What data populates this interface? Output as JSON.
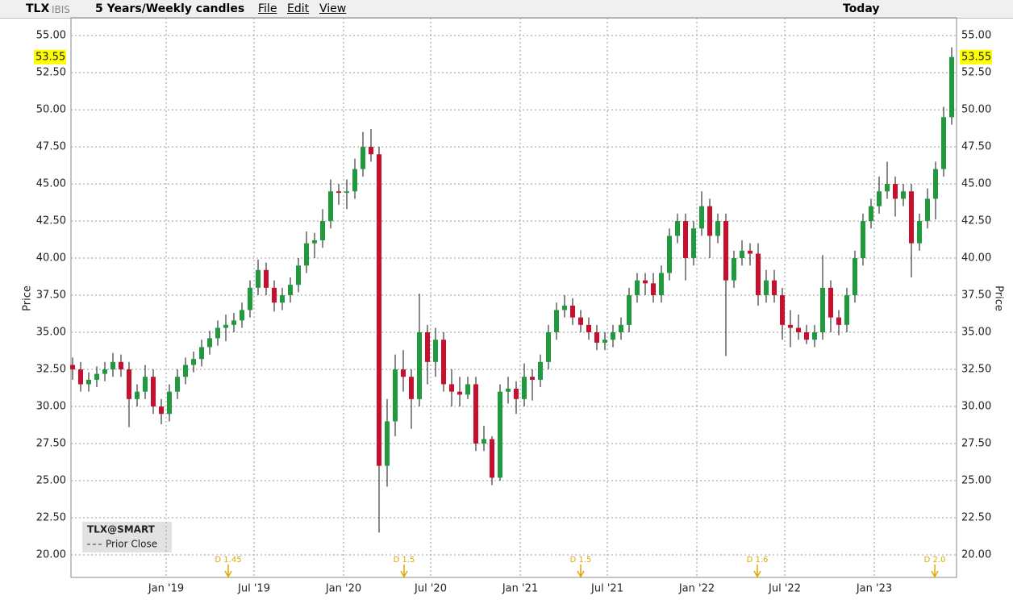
{
  "toolbar": {
    "symbol": "TLX",
    "exchange": "IBIS",
    "period": "5 Years/Weekly candles",
    "menus": [
      "File",
      "Edit",
      "View"
    ],
    "range": "Today"
  },
  "chart_data": {
    "type": "candlestick",
    "y_label": "Price",
    "legend_title": "TLX@SMART",
    "legend_item": "Prior Close",
    "up_color": "#1f9a3c",
    "down_color": "#c8102e",
    "grid": true,
    "xlim": [
      -0.2,
      109.6
    ],
    "xticks": [
      {
        "value": 11.6,
        "label": "Jan '19"
      },
      {
        "value": 22.5,
        "label": "Jul '19"
      },
      {
        "value": 33.6,
        "label": "Jan '20"
      },
      {
        "value": 44.4,
        "label": "Jul '20"
      },
      {
        "value": 55.5,
        "label": "Jan '21"
      },
      {
        "value": 66.3,
        "label": "Jul '21"
      },
      {
        "value": 77.4,
        "label": "Jan '22"
      },
      {
        "value": 88.3,
        "label": "Jul '22"
      },
      {
        "value": 99.4,
        "label": "Jan '23"
      }
    ],
    "ylim": [
      18.48,
      56.2
    ],
    "yticks": [
      {
        "value": 20,
        "label": "20.00"
      },
      {
        "value": 22.5,
        "label": "22.50"
      },
      {
        "value": 25,
        "label": "25.00"
      },
      {
        "value": 27.5,
        "label": "27.50"
      },
      {
        "value": 30,
        "label": "30.00"
      },
      {
        "value": 32.5,
        "label": "32.50"
      },
      {
        "value": 35,
        "label": "35.00"
      },
      {
        "value": 37.5,
        "label": "37.50"
      },
      {
        "value": 40,
        "label": "40.00"
      },
      {
        "value": 42.5,
        "label": "42.50"
      },
      {
        "value": 45,
        "label": "45.00"
      },
      {
        "value": 47.5,
        "label": "47.50"
      },
      {
        "value": 50,
        "label": "50.00"
      },
      {
        "value": 52.5,
        "label": "52.50"
      },
      {
        "value": 55,
        "label": "55.00"
      }
    ],
    "annotations": [
      {
        "x": 19.3,
        "label": "D 1.45"
      },
      {
        "x": 41.1,
        "label": "D 1.5"
      },
      {
        "x": 63,
        "label": "D 1.5"
      },
      {
        "x": 84.9,
        "label": "D 1.6"
      },
      {
        "x": 106.9,
        "label": "D 2.0"
      }
    ],
    "candles": [
      [
        32.8,
        33.3,
        31.8,
        32.5
      ],
      [
        32.5,
        33.0,
        31.0,
        31.5
      ],
      [
        31.5,
        32.3,
        31.0,
        31.8
      ],
      [
        31.8,
        32.7,
        31.3,
        32.2
      ],
      [
        32.2,
        33.0,
        31.7,
        32.5
      ],
      [
        32.5,
        33.6,
        32.0,
        33
      ],
      [
        33,
        33.5,
        32.0,
        32.5
      ],
      [
        32.5,
        33.0,
        28.6,
        30.5
      ],
      [
        30.5,
        31.5,
        30.0,
        31
      ],
      [
        31,
        32.8,
        30.5,
        32
      ],
      [
        32,
        32.5,
        29.5,
        30
      ],
      [
        30,
        30.5,
        28.8,
        29.5
      ],
      [
        29.5,
        31.5,
        29.0,
        31
      ],
      [
        31,
        32.5,
        30.5,
        32
      ],
      [
        32,
        33.3,
        31.5,
        32.8
      ],
      [
        32.8,
        33.7,
        32.3,
        33.2
      ],
      [
        33.2,
        34.5,
        32.7,
        34
      ],
      [
        34,
        35.1,
        33.5,
        34.6
      ],
      [
        34.6,
        35.8,
        34.1,
        35.3
      ],
      [
        35.3,
        36.2,
        34.4,
        35.5
      ],
      [
        35.5,
        36.3,
        35.0,
        35.8
      ],
      [
        35.8,
        37.0,
        35.3,
        36.5
      ],
      [
        36.5,
        38.5,
        36.0,
        38
      ],
      [
        38,
        39.9,
        37.5,
        39.2
      ],
      [
        39.2,
        39.7,
        37.5,
        38
      ],
      [
        38,
        38.5,
        36.4,
        37
      ],
      [
        37,
        38.0,
        36.5,
        37.5
      ],
      [
        37.5,
        38.7,
        37.0,
        38.2
      ],
      [
        38.2,
        40.0,
        37.7,
        39.5
      ],
      [
        39.5,
        41.8,
        39.0,
        41
      ],
      [
        41,
        41.7,
        40.0,
        41.2
      ],
      [
        41.2,
        43.3,
        40.7,
        42.5
      ],
      [
        42.5,
        45.3,
        42.0,
        44.5
      ],
      [
        44.5,
        45.0,
        43.6,
        44.4
      ],
      [
        44.4,
        45.3,
        43.3,
        44.5
      ],
      [
        44.5,
        46.7,
        44.0,
        46
      ],
      [
        46,
        48.5,
        45.5,
        47.5
      ],
      [
        47.5,
        48.7,
        46.5,
        47
      ],
      [
        47,
        47.5,
        21.5,
        26
      ],
      [
        26,
        30.5,
        24.6,
        29
      ],
      [
        29,
        33.5,
        28.0,
        32.5
      ],
      [
        32.5,
        33.8,
        31.0,
        32
      ],
      [
        32,
        32.5,
        28.5,
        30.5
      ],
      [
        30.5,
        37.6,
        30.0,
        35
      ],
      [
        35,
        35.5,
        31.5,
        33
      ],
      [
        33,
        35.3,
        32.0,
        34.5
      ],
      [
        34.5,
        35.0,
        31.0,
        31.5
      ],
      [
        31.5,
        32.5,
        30.0,
        31
      ],
      [
        31,
        32.0,
        30.0,
        30.8
      ],
      [
        30.8,
        32.0,
        30.5,
        31.5
      ],
      [
        31.5,
        32.0,
        27.0,
        27.5
      ],
      [
        27.5,
        28.7,
        27.0,
        27.8
      ],
      [
        27.8,
        28.0,
        24.7,
        25.2
      ],
      [
        25.2,
        31.5,
        25.0,
        31
      ],
      [
        31,
        32.0,
        30.2,
        31.2
      ],
      [
        31.2,
        31.7,
        29.5,
        30.5
      ],
      [
        30.5,
        32.9,
        30.0,
        32
      ],
      [
        32,
        32.5,
        30.4,
        31.8
      ],
      [
        31.8,
        33.5,
        31.3,
        33
      ],
      [
        33,
        35.5,
        32.5,
        35
      ],
      [
        35,
        37.0,
        34.5,
        36.5
      ],
      [
        36.5,
        37.5,
        36.0,
        36.8
      ],
      [
        36.8,
        37.3,
        35.5,
        36
      ],
      [
        36,
        36.5,
        35.0,
        35.5
      ],
      [
        35.5,
        36.0,
        34.5,
        35
      ],
      [
        35,
        35.5,
        33.8,
        34.3
      ],
      [
        34.3,
        35.0,
        33.8,
        34.5
      ],
      [
        34.5,
        35.5,
        34.0,
        35
      ],
      [
        35,
        36.0,
        34.5,
        35.5
      ],
      [
        35.5,
        38.0,
        35.0,
        37.5
      ],
      [
        37.5,
        39.0,
        37.0,
        38.5
      ],
      [
        38.5,
        39.0,
        37.5,
        38.3
      ],
      [
        38.3,
        39.0,
        37.0,
        37.5
      ],
      [
        37.5,
        39.5,
        37.0,
        39
      ],
      [
        39,
        42.0,
        38.5,
        41.5
      ],
      [
        41.5,
        43.0,
        41.0,
        42.5
      ],
      [
        42.5,
        43.0,
        38.5,
        40
      ],
      [
        40,
        42.5,
        39.5,
        42
      ],
      [
        42,
        44.5,
        41.5,
        43.5
      ],
      [
        43.5,
        44.0,
        40.0,
        41.5
      ],
      [
        41.5,
        43.0,
        41.0,
        42.5
      ],
      [
        42.5,
        43.0,
        33.4,
        38.5
      ],
      [
        38.5,
        40.5,
        38.0,
        40
      ],
      [
        40,
        41.2,
        39.5,
        40.5
      ],
      [
        40.5,
        41.0,
        39.5,
        40.3
      ],
      [
        40.3,
        41.0,
        36.8,
        37.5
      ],
      [
        37.5,
        39.2,
        37.0,
        38.5
      ],
      [
        38.5,
        39.2,
        37.0,
        37.5
      ],
      [
        37.5,
        38.0,
        34.5,
        35.5
      ],
      [
        35.5,
        36.5,
        34.0,
        35.3
      ],
      [
        35.3,
        36.2,
        34.5,
        35
      ],
      [
        35,
        35.5,
        34.2,
        34.5
      ],
      [
        34.5,
        35.5,
        34.0,
        35
      ],
      [
        35,
        40.2,
        34.5,
        38
      ],
      [
        38,
        38.5,
        35.0,
        36
      ],
      [
        36,
        36.5,
        34.8,
        35.5
      ],
      [
        35.5,
        38.0,
        35.0,
        37.5
      ],
      [
        37.5,
        40.5,
        37.0,
        40
      ],
      [
        40,
        43.0,
        39.5,
        42.5
      ],
      [
        42.5,
        44.0,
        42.0,
        43.5
      ],
      [
        43.5,
        45.5,
        43.0,
        44.5
      ],
      [
        44.5,
        46.5,
        44.0,
        45
      ],
      [
        45,
        45.5,
        42.8,
        44
      ],
      [
        44,
        45.0,
        43.5,
        44.5
      ],
      [
        44.5,
        45.0,
        38.7,
        41
      ],
      [
        41,
        43.0,
        40.5,
        42.5
      ],
      [
        42.5,
        44.7,
        42.0,
        44
      ],
      [
        44,
        46.5,
        42.6,
        46
      ],
      [
        46,
        50.2,
        45.5,
        49.5
      ],
      [
        49.5,
        54.2,
        49.0,
        53.55
      ]
    ]
  }
}
